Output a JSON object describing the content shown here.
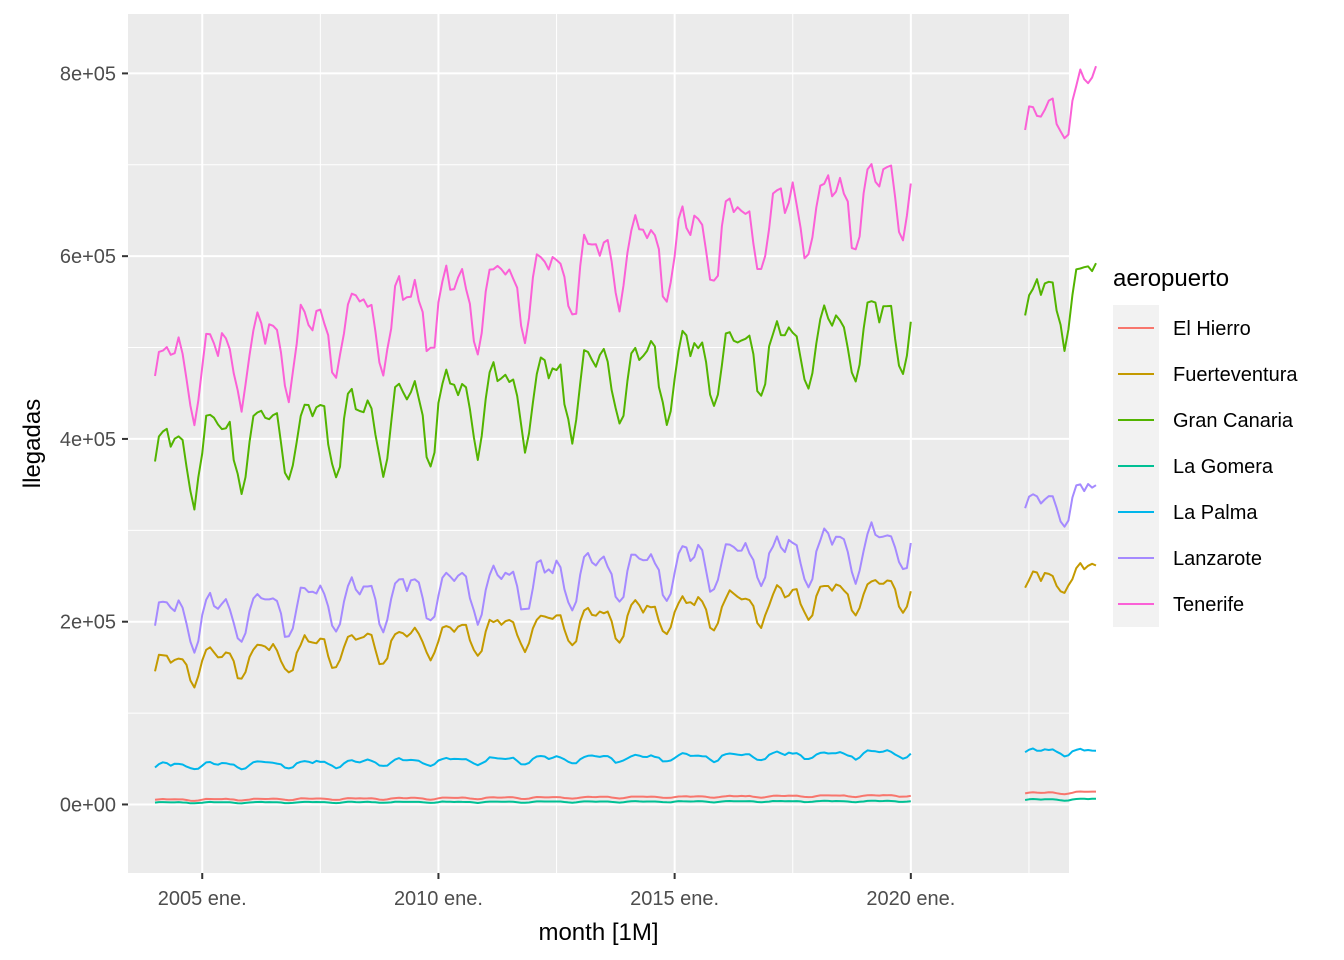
{
  "chart_data": {
    "type": "line",
    "title": "",
    "xlabel": "month [1M]",
    "ylabel": "llegadas",
    "legend_title": "aeropuerto",
    "legend_position": "right",
    "x_range": [
      2004.0,
      2023.92
    ],
    "ylim": [
      -75000,
      865000
    ],
    "x_ticks": [
      {
        "value": 2005.0,
        "label": "2005 ene."
      },
      {
        "value": 2010.0,
        "label": "2010 ene."
      },
      {
        "value": 2015.0,
        "label": "2015 ene."
      },
      {
        "value": 2020.0,
        "label": "2020 ene."
      }
    ],
    "y_ticks": [
      {
        "value": 0,
        "label": "0e+00"
      },
      {
        "value": 200000,
        "label": "2e+05"
      },
      {
        "value": 400000,
        "label": "4e+05"
      },
      {
        "value": 600000,
        "label": "6e+05"
      },
      {
        "value": 800000,
        "label": "8e+05"
      }
    ],
    "segments": [
      {
        "start": 2004.0,
        "end": 2020.0
      },
      {
        "start": 2022.42,
        "end": 2023.92
      }
    ],
    "series": [
      {
        "name": "El Hierro",
        "color": "#F8766D",
        "base": 5000,
        "trend": 300,
        "amp": 1500,
        "noise": 500,
        "base2": 12000,
        "trend2": 1000,
        "amp2": 2000
      },
      {
        "name": "Fuerteventura",
        "color": "#C49A00",
        "base": 150000,
        "trend": 5500,
        "amp": 28000,
        "noise": 8000,
        "base2": 240000,
        "trend2": 10000,
        "amp2": 22000
      },
      {
        "name": "Gran Canaria",
        "color": "#53B400",
        "base": 380000,
        "trend": 9000,
        "amp": 65000,
        "noise": 20000,
        "base2": 540000,
        "trend2": 20000,
        "amp2": 60000
      },
      {
        "name": "La Gomera",
        "color": "#00C094",
        "base": 2000,
        "trend": 100,
        "amp": 1000,
        "noise": 400,
        "base2": 5000,
        "trend2": 500,
        "amp2": 1500
      },
      {
        "name": "La Palma",
        "color": "#00B6EB",
        "base": 42000,
        "trend": 900,
        "amp": 6000,
        "noise": 2500,
        "base2": 58000,
        "trend2": 0,
        "amp2": 5000
      },
      {
        "name": "Lanzarote",
        "color": "#A58AFF",
        "base": 200000,
        "trend": 5500,
        "amp": 40000,
        "noise": 12000,
        "base2": 320000,
        "trend2": 15000,
        "amp2": 28000
      },
      {
        "name": "Tenerife",
        "color": "#FB61D7",
        "base": 470000,
        "trend": 13000,
        "amp": 65000,
        "noise": 22000,
        "base2": 730000,
        "trend2": 40000,
        "amp2": 50000
      }
    ]
  }
}
